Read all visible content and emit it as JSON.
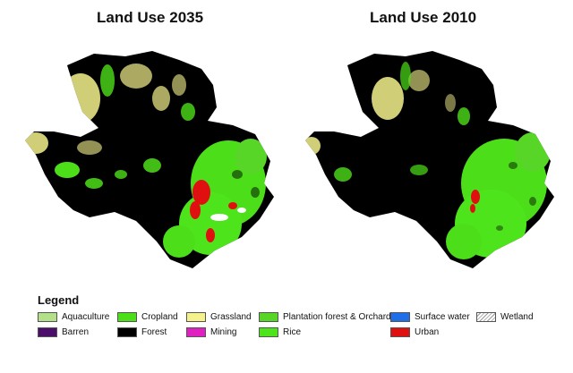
{
  "maps": [
    {
      "title": "Land Use 2035"
    },
    {
      "title": "Land Use 2010"
    }
  ],
  "legend": {
    "title": "Legend",
    "items": [
      {
        "label": "Aquaculture",
        "color": "#b5e08a"
      },
      {
        "label": "Cropland",
        "color": "#4dde1a"
      },
      {
        "label": "Grassland",
        "color": "#f5f28c"
      },
      {
        "label": "Plantation forest & Orchard",
        "color": "#57d628"
      },
      {
        "label": "Surface water",
        "color": "#1f6fe8"
      },
      {
        "label": "Wetland",
        "color": "hatch"
      },
      {
        "label": "Barren",
        "color": "#4b0f6b"
      },
      {
        "label": "Forest",
        "color": "#000000"
      },
      {
        "label": "Mining",
        "color": "#e020c0"
      },
      {
        "label": "Rice",
        "color": "#4ee41c"
      },
      {
        "label": "Urban",
        "color": "#e01010"
      }
    ]
  }
}
